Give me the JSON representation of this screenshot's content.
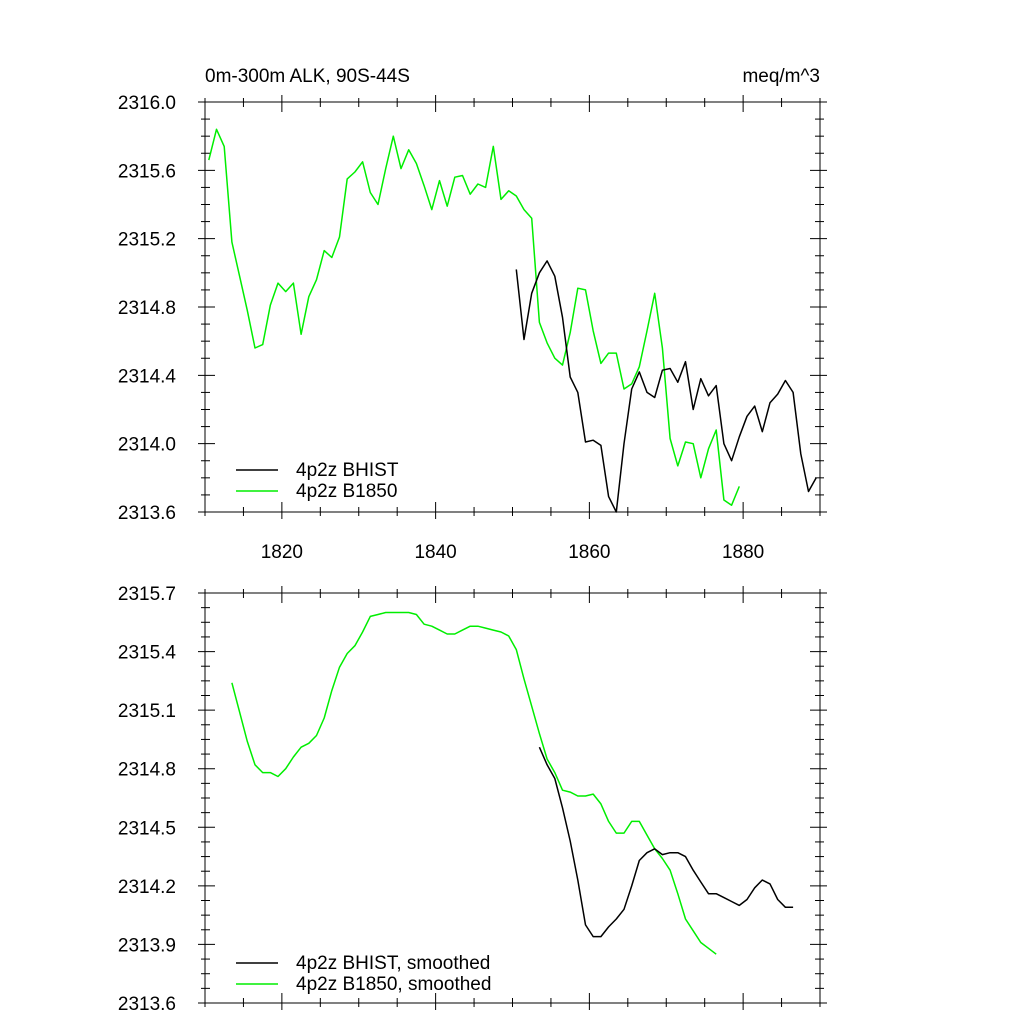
{
  "colors": {
    "bhist": "#000000",
    "b1850": "#00ee00",
    "axis": "#000000",
    "background": "#ffffff"
  },
  "chart_data": [
    {
      "type": "line",
      "title": "0m-300m ALK, 90S-44S",
      "units": "meq/m^3",
      "xlim": [
        1810,
        1890
      ],
      "ylim": [
        2313.6,
        2316.0
      ],
      "x_ticks": [
        1820,
        1840,
        1860,
        1880
      ],
      "x_tick_labels": [
        "1820",
        "1840",
        "1860",
        "1880"
      ],
      "y_ticks": [
        2313.6,
        2314.0,
        2314.4,
        2314.8,
        2315.2,
        2315.6,
        2316.0
      ],
      "y_tick_labels": [
        "2313.6",
        "2314.0",
        "2314.4",
        "2314.8",
        "2315.2",
        "2315.6",
        "2316.0"
      ],
      "legend_position": "bottom-left",
      "series": [
        {
          "name": "4p2z BHIST",
          "color": "black",
          "x": [
            1850.5,
            1851.5,
            1852.5,
            1853.5,
            1854.5,
            1855.5,
            1856.5,
            1857.5,
            1858.5,
            1859.5,
            1860.5,
            1861.5,
            1862.5,
            1863.5,
            1864.5,
            1865.5,
            1866.5,
            1867.5,
            1868.5,
            1869.5,
            1870.5,
            1871.5,
            1872.5,
            1873.5,
            1874.5,
            1875.5,
            1876.5,
            1877.5,
            1878.5,
            1879.5,
            1880.5,
            1881.5,
            1882.5,
            1883.5,
            1884.5,
            1885.5,
            1886.5,
            1887.5,
            1888.5,
            1889.5
          ],
          "y": [
            2315.02,
            2314.61,
            2314.88,
            2315.0,
            2315.07,
            2314.98,
            2314.74,
            2314.39,
            2314.3,
            2314.01,
            2314.02,
            2313.99,
            2313.69,
            2313.6,
            2314.0,
            2314.32,
            2314.42,
            2314.3,
            2314.27,
            2314.43,
            2314.44,
            2314.36,
            2314.48,
            2314.2,
            2314.38,
            2314.28,
            2314.34,
            2314.0,
            2313.9,
            2314.04,
            2314.16,
            2314.22,
            2314.07,
            2314.24,
            2314.29,
            2314.37,
            2314.3,
            2313.94,
            2313.72,
            2313.8
          ]
        },
        {
          "name": "4p2z B1850",
          "color": "green",
          "x": [
            1810.5,
            1811.5,
            1812.5,
            1813.5,
            1814.5,
            1815.5,
            1816.5,
            1817.5,
            1818.5,
            1819.5,
            1820.5,
            1821.5,
            1822.5,
            1823.5,
            1824.5,
            1825.5,
            1826.5,
            1827.5,
            1828.5,
            1829.5,
            1830.5,
            1831.5,
            1832.5,
            1833.5,
            1834.5,
            1835.5,
            1836.5,
            1837.5,
            1838.5,
            1839.5,
            1840.5,
            1841.5,
            1842.5,
            1843.5,
            1844.5,
            1845.5,
            1846.5,
            1847.5,
            1848.5,
            1849.5,
            1850.5,
            1851.5,
            1852.5,
            1853.5,
            1854.5,
            1855.5,
            1856.5,
            1857.5,
            1858.5,
            1859.5,
            1860.5,
            1861.5,
            1862.5,
            1863.5,
            1864.5,
            1865.5,
            1866.5,
            1867.5,
            1868.5,
            1869.5,
            1870.5,
            1871.5,
            1872.5,
            1873.5,
            1874.5,
            1875.5,
            1876.5,
            1877.5,
            1878.5,
            1879.5
          ],
          "y": [
            2315.66,
            2315.84,
            2315.74,
            2315.18,
            2314.98,
            2314.78,
            2314.56,
            2314.58,
            2314.81,
            2314.94,
            2314.89,
            2314.94,
            2314.64,
            2314.86,
            2314.96,
            2315.13,
            2315.09,
            2315.21,
            2315.55,
            2315.59,
            2315.65,
            2315.47,
            2315.4,
            2315.61,
            2315.8,
            2315.61,
            2315.72,
            2315.64,
            2315.51,
            2315.37,
            2315.54,
            2315.39,
            2315.56,
            2315.57,
            2315.46,
            2315.52,
            2315.5,
            2315.74,
            2315.43,
            2315.48,
            2315.45,
            2315.37,
            2315.32,
            2314.71,
            2314.59,
            2314.5,
            2314.46,
            2314.65,
            2314.91,
            2314.9,
            2314.66,
            2314.47,
            2314.53,
            2314.53,
            2314.32,
            2314.35,
            2314.45,
            2314.66,
            2314.88,
            2314.56,
            2314.03,
            2313.87,
            2314.01,
            2314.0,
            2313.8,
            2313.97,
            2314.08,
            2313.67,
            2313.64,
            2313.75
          ]
        }
      ]
    },
    {
      "type": "line",
      "xlim": [
        1810,
        1890
      ],
      "ylim": [
        2313.6,
        2315.7
      ],
      "x_ticks": [
        1820,
        1840,
        1860,
        1880
      ],
      "y_ticks": [
        2313.6,
        2313.9,
        2314.2,
        2314.5,
        2314.8,
        2315.1,
        2315.4,
        2315.7
      ],
      "y_tick_labels": [
        "2313.6",
        "2313.9",
        "2314.2",
        "2314.5",
        "2314.8",
        "2315.1",
        "2315.4",
        "2315.7"
      ],
      "legend_position": "bottom-left",
      "series": [
        {
          "name": "4p2z BHIST, smoothed",
          "color": "black",
          "x": [
            1853.5,
            1854.5,
            1855.5,
            1856.5,
            1857.5,
            1858.5,
            1859.5,
            1860.5,
            1861.5,
            1862.5,
            1863.5,
            1864.5,
            1865.5,
            1866.5,
            1867.5,
            1868.5,
            1869.5,
            1870.5,
            1871.5,
            1872.5,
            1873.5,
            1874.5,
            1875.5,
            1876.5,
            1877.5,
            1878.5,
            1879.5,
            1880.5,
            1881.5,
            1882.5,
            1883.5,
            1884.5,
            1885.5,
            1886.5
          ],
          "y": [
            2314.91,
            2314.82,
            2314.75,
            2314.6,
            2314.43,
            2314.23,
            2314.0,
            2313.94,
            2313.94,
            2313.99,
            2314.03,
            2314.08,
            2314.2,
            2314.33,
            2314.37,
            2314.39,
            2314.36,
            2314.37,
            2314.37,
            2314.35,
            2314.28,
            2314.22,
            2314.16,
            2314.16,
            2314.14,
            2314.12,
            2314.1,
            2314.13,
            2314.19,
            2314.23,
            2314.21,
            2314.13,
            2314.09,
            2314.09
          ]
        },
        {
          "name": "4p2z B1850, smoothed",
          "color": "green",
          "x": [
            1813.5,
            1814.5,
            1815.5,
            1816.5,
            1817.5,
            1818.5,
            1819.5,
            1820.5,
            1821.5,
            1822.5,
            1823.5,
            1824.5,
            1825.5,
            1826.5,
            1827.5,
            1828.5,
            1829.5,
            1830.5,
            1831.5,
            1832.5,
            1833.5,
            1834.5,
            1835.5,
            1836.5,
            1837.5,
            1838.5,
            1839.5,
            1840.5,
            1841.5,
            1842.5,
            1843.5,
            1844.5,
            1845.5,
            1846.5,
            1847.5,
            1848.5,
            1849.5,
            1850.5,
            1851.5,
            1852.5,
            1853.5,
            1854.5,
            1855.5,
            1856.5,
            1857.5,
            1858.5,
            1859.5,
            1860.5,
            1861.5,
            1862.5,
            1863.5,
            1864.5,
            1865.5,
            1866.5,
            1867.5,
            1868.5,
            1869.5,
            1870.5,
            1871.5,
            1872.5,
            1873.5,
            1874.5,
            1875.5,
            1876.5
          ],
          "y": [
            2315.24,
            2315.09,
            2314.94,
            2314.82,
            2314.78,
            2314.78,
            2314.76,
            2314.8,
            2314.86,
            2314.91,
            2314.93,
            2314.97,
            2315.06,
            2315.2,
            2315.32,
            2315.39,
            2315.43,
            2315.5,
            2315.58,
            2315.59,
            2315.6,
            2315.6,
            2315.6,
            2315.6,
            2315.59,
            2315.54,
            2315.53,
            2315.51,
            2315.49,
            2315.49,
            2315.51,
            2315.53,
            2315.53,
            2315.52,
            2315.51,
            2315.5,
            2315.48,
            2315.41,
            2315.26,
            2315.12,
            2314.98,
            2314.85,
            2314.78,
            2314.69,
            2314.68,
            2314.66,
            2314.66,
            2314.67,
            2314.62,
            2314.53,
            2314.47,
            2314.47,
            2314.53,
            2314.53,
            2314.46,
            2314.39,
            2314.34,
            2314.28,
            2314.16,
            2314.03,
            2313.97,
            2313.91,
            2313.88,
            2313.85
          ]
        }
      ]
    }
  ]
}
